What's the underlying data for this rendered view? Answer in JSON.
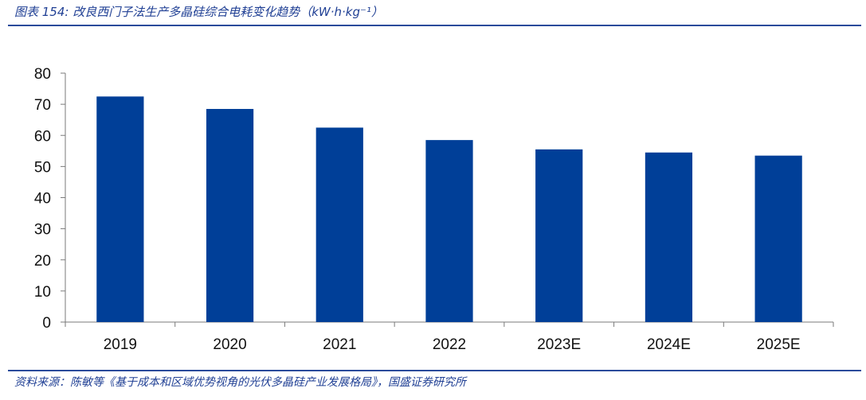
{
  "header": {
    "title": "图表 154:  改良西门子法生产多晶硅综合电耗变化趋势（kW·h·kg⁻¹）"
  },
  "footer": {
    "source": "资料来源：陈敏等《基于成本和区域优势视角的光伏多晶硅产业发展格局》，国盛证券研究所"
  },
  "chart_data": {
    "type": "bar",
    "title": "改良西门子法生产多晶硅综合电耗变化趋势（kW·h·kg⁻¹）",
    "categories": [
      "2019",
      "2020",
      "2021",
      "2022",
      "2023E",
      "2024E",
      "2025E"
    ],
    "values": [
      72.5,
      68.5,
      62.5,
      58.5,
      55.5,
      54.5,
      53.5
    ],
    "xlabel": "",
    "ylabel": "",
    "ylim": [
      0,
      80
    ],
    "yticks": [
      "0",
      "10",
      "20",
      "30",
      "40",
      "50",
      "60",
      "70",
      "80"
    ],
    "grid": false,
    "legend": "none",
    "bar_color": "#003f98"
  }
}
